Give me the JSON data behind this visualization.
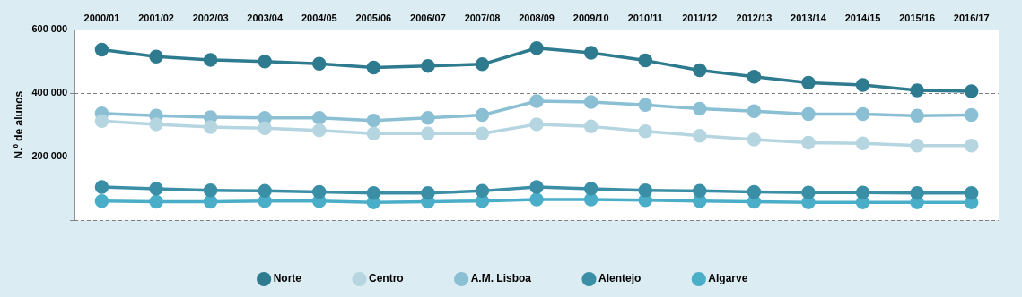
{
  "chart_data": {
    "type": "line",
    "ylabel": "N.º de alunos",
    "categories": [
      "2000/01",
      "2001/02",
      "2002/03",
      "2003/04",
      "2004/05",
      "2005/06",
      "2006/07",
      "2007/08",
      "2008/09",
      "2009/10",
      "2010/11",
      "2011/12",
      "2012/13",
      "2013/14",
      "2014/15",
      "2015/16",
      "2016/17"
    ],
    "series": [
      {
        "name": "Norte",
        "color": "#2e7b90",
        "values": [
          537000,
          515000,
          505000,
          500000,
          493000,
          481000,
          486000,
          491000,
          542000,
          527000,
          503000,
          472000,
          452000,
          433000,
          426000,
          409000,
          406000
        ]
      },
      {
        "name": "Centro",
        "color": "#b5d5e0",
        "values": [
          312000,
          302000,
          293000,
          290000,
          283000,
          273000,
          273000,
          273000,
          302000,
          295000,
          280000,
          266000,
          254000,
          244000,
          242000,
          235000,
          235000
        ]
      },
      {
        "name": "A.M. Lisboa",
        "color": "#8bbfd3",
        "values": [
          336000,
          329000,
          324000,
          322000,
          322000,
          314000,
          322000,
          331000,
          375000,
          372000,
          363000,
          351000,
          343000,
          334000,
          334000,
          329000,
          331000
        ]
      },
      {
        "name": "Alentejo",
        "color": "#3a8fa6",
        "values": [
          104000,
          99000,
          94000,
          92000,
          89000,
          85000,
          85000,
          92000,
          104000,
          99000,
          94000,
          92000,
          89000,
          87000,
          87000,
          85000,
          85000
        ]
      },
      {
        "name": "Algarve",
        "color": "#4aaec9",
        "values": [
          60000,
          58000,
          58000,
          60000,
          60000,
          56000,
          58000,
          60000,
          65000,
          65000,
          63000,
          60000,
          58000,
          56000,
          56000,
          56000,
          56000
        ]
      }
    ],
    "ylim": [
      0,
      600000
    ],
    "yticks": [
      {
        "value": 0,
        "label": null
      },
      {
        "value": 200000,
        "label": "200 000"
      },
      {
        "value": 400000,
        "label": "400 000"
      },
      {
        "value": 600000,
        "label": "600 000"
      }
    ],
    "grid": "y",
    "legend": "bottom",
    "marker": "circle",
    "line_style": "solid"
  }
}
